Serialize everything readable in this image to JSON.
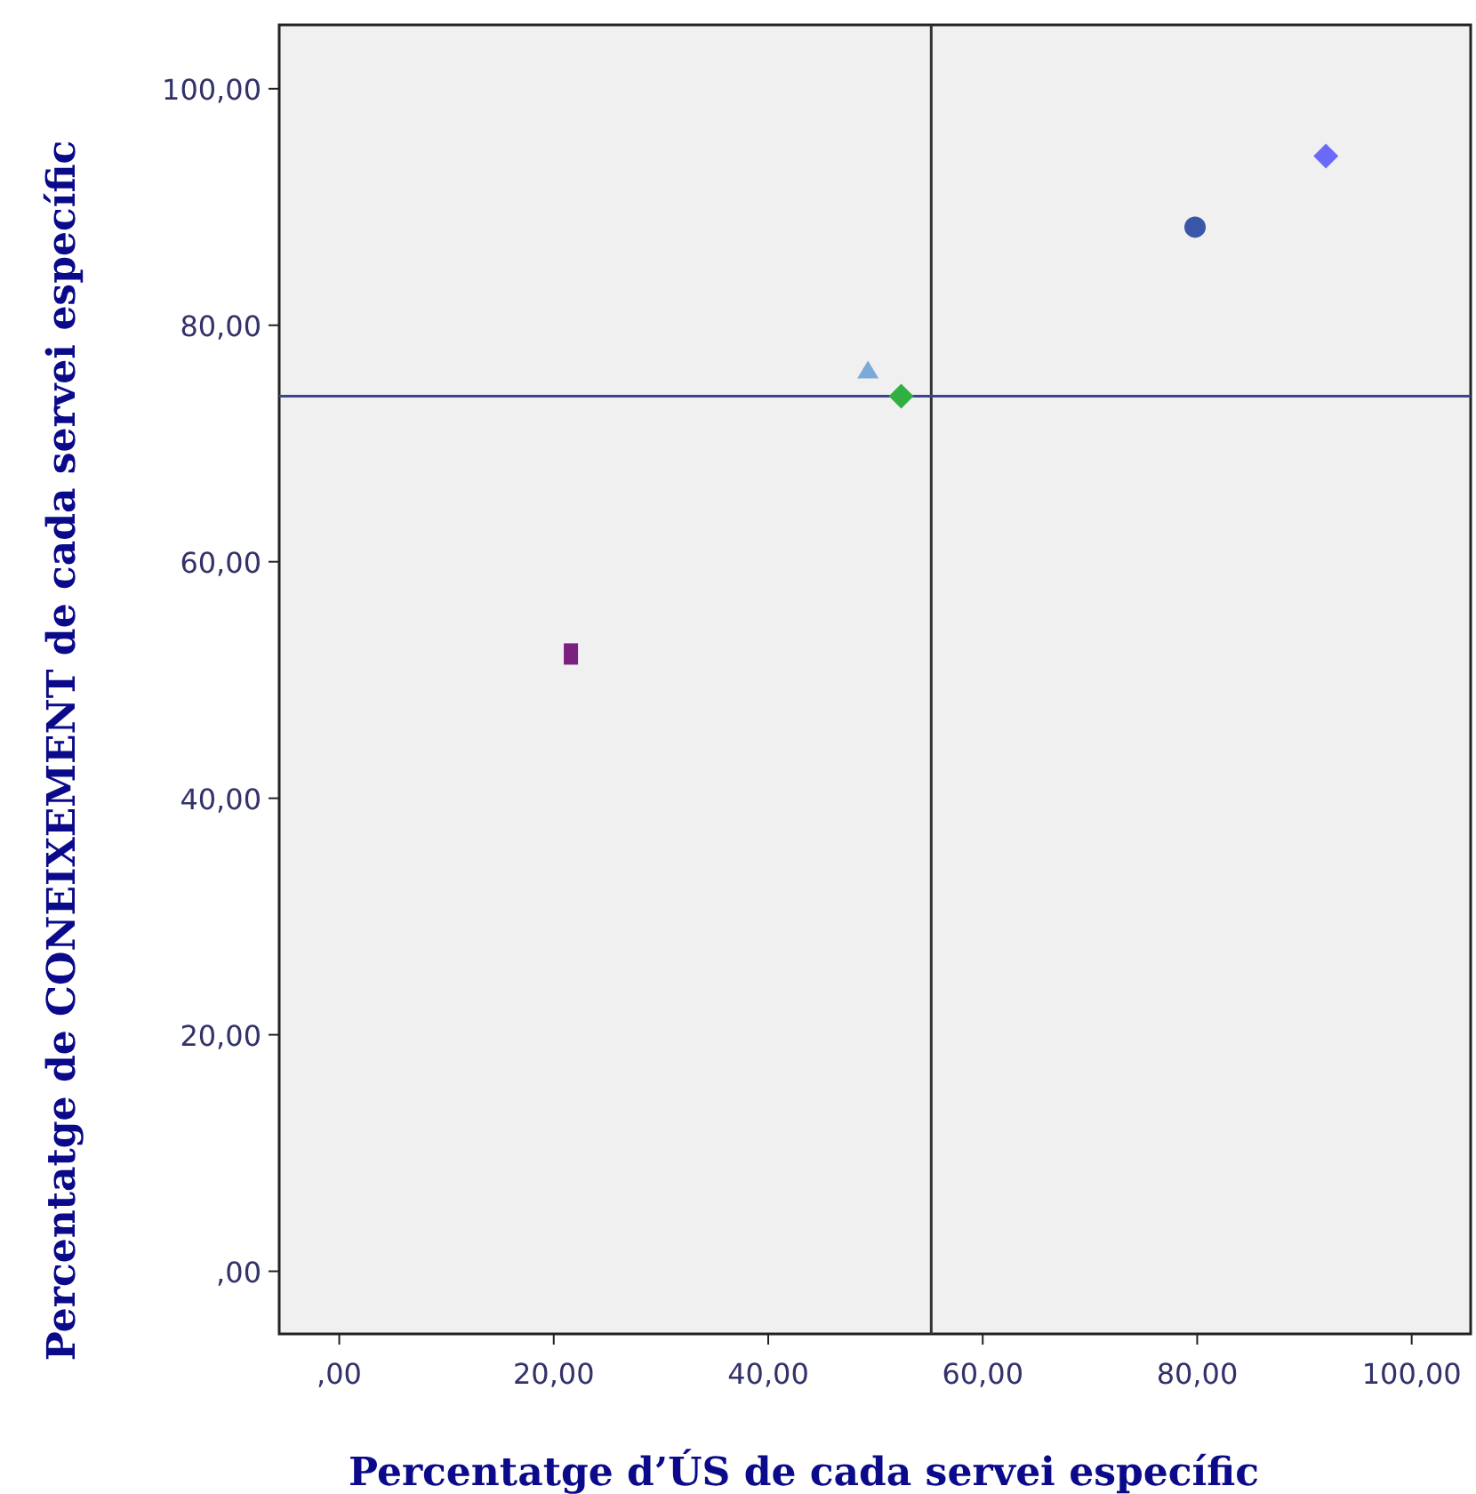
{
  "chart_data": {
    "type": "scatter",
    "xlabel": "Percentatge d’ÚS de cada servei específic",
    "ylabel": "Percentatge de CONEIXEMENT de cada servei específic",
    "xlim": [
      -5.6,
      105.5
    ],
    "ylim": [
      -5.3,
      105.4
    ],
    "xticks": [
      {
        "value": 0,
        "label": ",00"
      },
      {
        "value": 20,
        "label": "20,00"
      },
      {
        "value": 40,
        "label": "40,00"
      },
      {
        "value": 60,
        "label": "60,00"
      },
      {
        "value": 80,
        "label": "80,00"
      },
      {
        "value": 100,
        "label": "100,00"
      }
    ],
    "yticks": [
      {
        "value": 0,
        "label": ",00"
      },
      {
        "value": 20,
        "label": "20,00"
      },
      {
        "value": 40,
        "label": "40,00"
      },
      {
        "value": 60,
        "label": "60,00"
      },
      {
        "value": 80,
        "label": "80,00"
      },
      {
        "value": 100,
        "label": "100,00"
      }
    ],
    "grid": false,
    "series": [
      {
        "color": "#7a2080",
        "marker": "square",
        "x": [
          21.6
        ],
        "values": [
          52.2
        ]
      },
      {
        "color": "#7aaad8",
        "marker": "triangle",
        "x": [
          49.3
        ],
        "values": [
          76.1
        ]
      },
      {
        "color": "#30b040",
        "marker": "diamond",
        "x": [
          52.4
        ],
        "values": [
          74.0
        ]
      },
      {
        "color": "#3a56a8",
        "marker": "circle",
        "x": [
          79.8
        ],
        "values": [
          88.3
        ]
      },
      {
        "color": "#6a6af8",
        "marker": "diamond",
        "x": [
          92.0
        ],
        "values": [
          94.3
        ]
      }
    ],
    "ref_lines": [
      {
        "axis": "x",
        "value": 55.2,
        "color": "#333333"
      },
      {
        "axis": "y",
        "value": 74.0,
        "color": "#3a4490"
      }
    ]
  }
}
